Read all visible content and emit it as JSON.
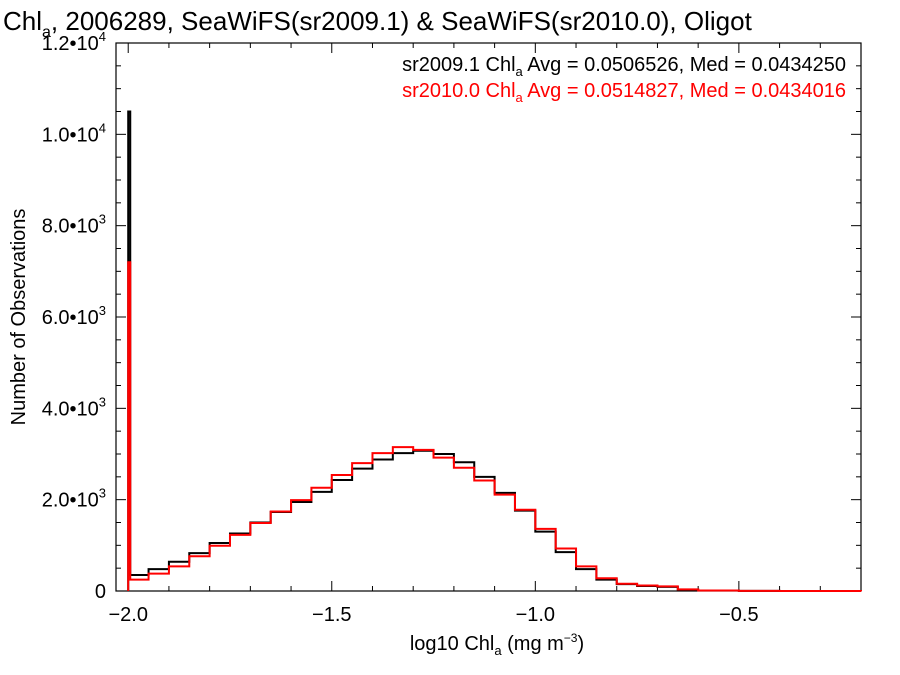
{
  "chart_data": {
    "type": "line",
    "title": {
      "pre": "Chl",
      "sub": "a",
      "post": ", 2006289, SeaWiFS(sr2009.1) & SeaWiFS(sr2010.0), Oligot"
    },
    "xlabel": {
      "pre": "log10 Chl",
      "sub": "a",
      "post": " (mg m",
      "sup": "−3",
      "end": ")"
    },
    "ylabel": "Number of Observations",
    "xlim": [
      -2.03,
      -0.2
    ],
    "ylim": [
      0,
      12000
    ],
    "x_ticks": [
      {
        "value": -2.0,
        "label": "−2.0"
      },
      {
        "value": -1.5,
        "label": "−1.5"
      },
      {
        "value": -1.0,
        "label": "−1.0"
      },
      {
        "value": -0.5,
        "label": "−0.5"
      }
    ],
    "y_ticks": [
      {
        "value": 0,
        "mant": "0",
        "exp": ""
      },
      {
        "value": 2000,
        "mant": "2.0•10",
        "exp": "3"
      },
      {
        "value": 4000,
        "mant": "4.0•10",
        "exp": "3"
      },
      {
        "value": 6000,
        "mant": "6.0•10",
        "exp": "3"
      },
      {
        "value": 8000,
        "mant": "8.0•10",
        "exp": "3"
      },
      {
        "value": 10000,
        "mant": "1.0•10",
        "exp": "4"
      },
      {
        "value": 12000,
        "mant": "1.2•10",
        "exp": "4"
      }
    ],
    "grid": false,
    "legend_position": "top-right",
    "series": [
      {
        "name": "sr2009.1",
        "color": "#000000",
        "stats": {
          "pre": "sr2009.1 Chl",
          "sub": "a",
          "post": " Avg = 0.0506526, Med = 0.0434250"
        },
        "points": [
          [
            -2.0,
            10500
          ],
          [
            -1.995,
            350
          ],
          [
            -1.95,
            480
          ],
          [
            -1.9,
            640
          ],
          [
            -1.85,
            830
          ],
          [
            -1.8,
            1050
          ],
          [
            -1.75,
            1260
          ],
          [
            -1.7,
            1500
          ],
          [
            -1.65,
            1730
          ],
          [
            -1.6,
            1950
          ],
          [
            -1.55,
            2170
          ],
          [
            -1.5,
            2430
          ],
          [
            -1.45,
            2680
          ],
          [
            -1.4,
            2880
          ],
          [
            -1.35,
            3020
          ],
          [
            -1.3,
            3070
          ],
          [
            -1.25,
            3000
          ],
          [
            -1.2,
            2820
          ],
          [
            -1.15,
            2500
          ],
          [
            -1.1,
            2150
          ],
          [
            -1.05,
            1760
          ],
          [
            -1.0,
            1300
          ],
          [
            -0.95,
            850
          ],
          [
            -0.9,
            480
          ],
          [
            -0.85,
            250
          ],
          [
            -0.8,
            150
          ],
          [
            -0.75,
            110
          ],
          [
            -0.7,
            90
          ],
          [
            -0.65,
            30
          ],
          [
            -0.6,
            10
          ],
          [
            -0.5,
            3
          ],
          [
            -0.4,
            1
          ],
          [
            -0.2,
            0
          ]
        ]
      },
      {
        "name": "sr2010.0",
        "color": "#ff0000",
        "stats": {
          "pre": "sr2010.0 Chl",
          "sub": "a",
          "post": " Avg = 0.0514827, Med = 0.0434016"
        },
        "points": [
          [
            -2.0,
            7200
          ],
          [
            -1.995,
            250
          ],
          [
            -1.95,
            380
          ],
          [
            -1.9,
            540
          ],
          [
            -1.85,
            760
          ],
          [
            -1.8,
            990
          ],
          [
            -1.75,
            1230
          ],
          [
            -1.7,
            1490
          ],
          [
            -1.65,
            1740
          ],
          [
            -1.6,
            1990
          ],
          [
            -1.55,
            2260
          ],
          [
            -1.5,
            2540
          ],
          [
            -1.45,
            2800
          ],
          [
            -1.4,
            3020
          ],
          [
            -1.35,
            3150
          ],
          [
            -1.3,
            3090
          ],
          [
            -1.25,
            2920
          ],
          [
            -1.2,
            2700
          ],
          [
            -1.15,
            2420
          ],
          [
            -1.1,
            2110
          ],
          [
            -1.05,
            1780
          ],
          [
            -1.0,
            1360
          ],
          [
            -0.95,
            930
          ],
          [
            -0.9,
            540
          ],
          [
            -0.85,
            280
          ],
          [
            -0.8,
            160
          ],
          [
            -0.75,
            120
          ],
          [
            -0.7,
            100
          ],
          [
            -0.65,
            35
          ],
          [
            -0.6,
            12
          ],
          [
            -0.5,
            3
          ],
          [
            -0.4,
            1
          ],
          [
            -0.2,
            0
          ]
        ]
      }
    ]
  }
}
